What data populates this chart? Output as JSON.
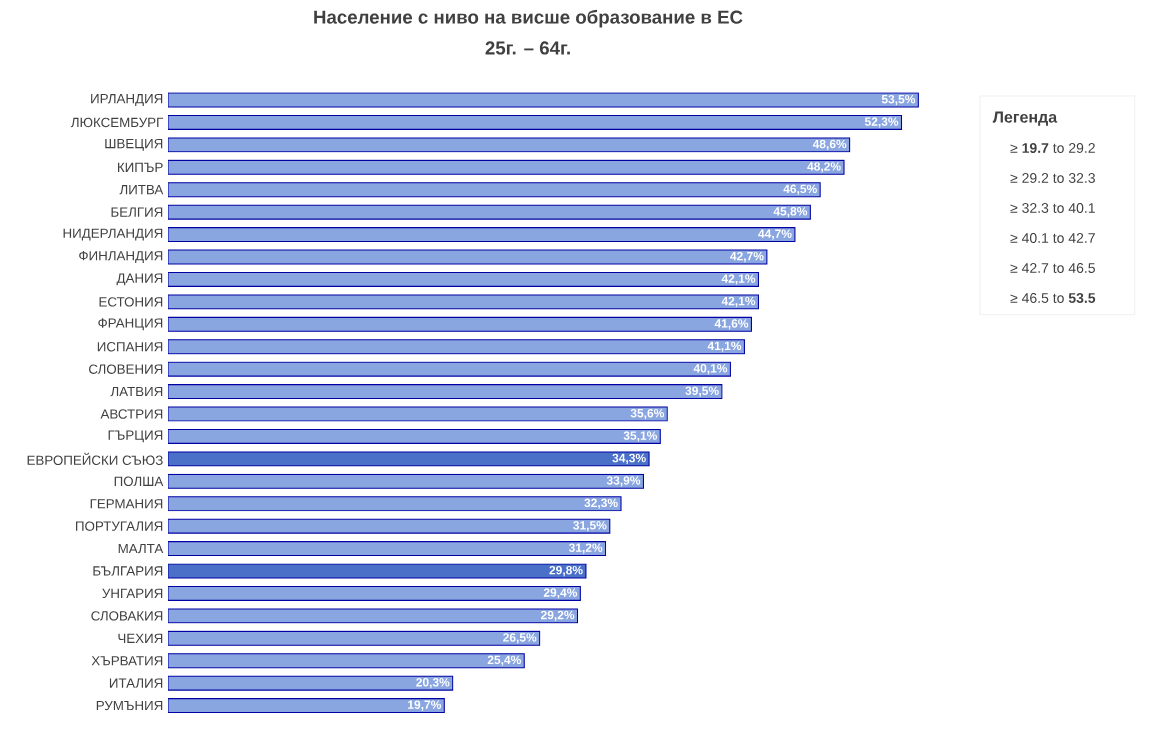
{
  "chart_data": {
    "type": "bar",
    "orientation": "horizontal",
    "title": "Население с ниво на висше образование в ЕС",
    "subtitle": "25г. – 64г.",
    "categories": [
      "ИРЛАНДИЯ",
      "ЛЮКСЕМБУРГ",
      "ШВЕЦИЯ",
      "КИПЪР",
      "ЛИТВА",
      "БЕЛГИЯ",
      "НИДЕРЛАНДИЯ",
      "ФИНЛАНДИЯ",
      "ДАНИЯ",
      "ЕСТОНИЯ",
      "ФРАНЦИЯ",
      "ИСПАНИЯ",
      "СЛОВЕНИЯ",
      "ЛАТВИЯ",
      "АВСТРИЯ",
      "ГЪРЦИЯ",
      "ЕВРОПЕЙСКИ СЪЮЗ",
      "ПОЛША",
      "ГЕРМАНИЯ",
      "ПОРТУГАЛИЯ",
      "МАЛТА",
      "БЪЛГАРИЯ",
      "УНГАРИЯ",
      "СЛОВАКИЯ",
      "ЧЕХИЯ",
      "ХЪРВАТИЯ",
      "ИТАЛИЯ",
      "РУМЪНИЯ"
    ],
    "values": [
      53.5,
      52.3,
      48.6,
      48.2,
      46.5,
      45.8,
      44.7,
      42.7,
      42.1,
      42.1,
      41.6,
      41.1,
      40.1,
      39.5,
      35.6,
      35.1,
      34.3,
      33.9,
      32.3,
      31.5,
      31.2,
      29.8,
      29.4,
      29.2,
      26.5,
      25.4,
      20.3,
      19.7
    ],
    "value_labels": [
      "53,5%",
      "52,3%",
      "48,6%",
      "48,2%",
      "46,5%",
      "45,8%",
      "44,7%",
      "42,7%",
      "42,1%",
      "42,1%",
      "41,6%",
      "41,1%",
      "40,1%",
      "39,5%",
      "35,6%",
      "35,1%",
      "34,3%",
      "33,9%",
      "32,3%",
      "31,5%",
      "31,2%",
      "29,8%",
      "29,4%",
      "29,2%",
      "26,5%",
      "25,4%",
      "20,3%",
      "19,7%"
    ],
    "colors": [
      "#8aa6e0",
      "#8aa6e0",
      "#8aa6e0",
      "#8aa6e0",
      "#8aa6e0",
      "#8aa6e0",
      "#8aa6e0",
      "#8aa6e0",
      "#8aa6e0",
      "#8aa6e0",
      "#8aa6e0",
      "#8aa6e0",
      "#8aa6e0",
      "#8aa6e0",
      "#8aa6e0",
      "#8aa6e0",
      "#4a70c8",
      "#8aa6e0",
      "#8aa6e0",
      "#8aa6e0",
      "#8aa6e0",
      "#4a70c8",
      "#8aa6e0",
      "#8aa6e0",
      "#8aa6e0",
      "#8aa6e0",
      "#8aa6e0",
      "#8aa6e0"
    ],
    "annotations": [
      "Легенда",
      "≥ **19.7** to 29.2",
      "≥ 29.2 to 32.3",
      "≥ 32.3 to 40.1",
      "≥ 40.1 to 42.7",
      "≥ 42.7 to 46.5",
      "≥ 46.5 to **53.5**"
    ]
  }
}
